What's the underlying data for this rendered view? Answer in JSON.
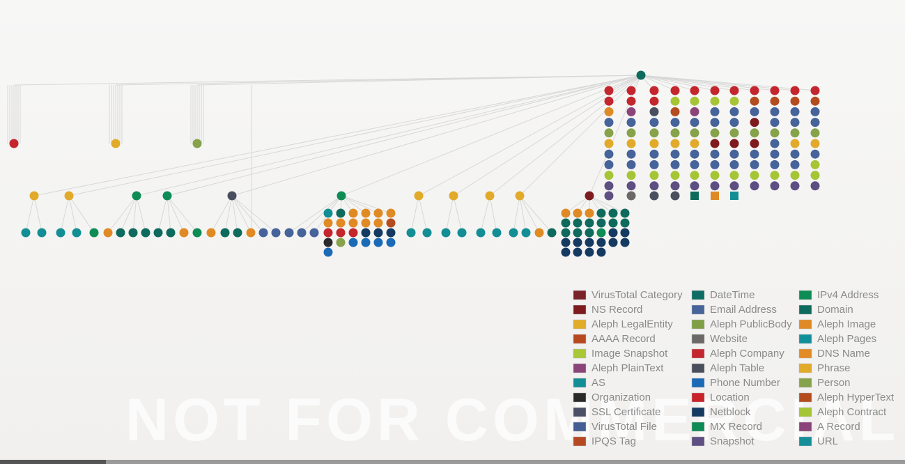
{
  "watermark": "NOT FOR COMMERCIAL USE",
  "legend": [
    {
      "label": "VirusTotal Category",
      "color": "#7a2228"
    },
    {
      "label": "NS Record",
      "color": "#7e1b1f"
    },
    {
      "label": "Aleph LegalEntity",
      "color": "#e2ac28"
    },
    {
      "label": "AAAA Record",
      "color": "#b8491f"
    },
    {
      "label": "Image Snapshot",
      "color": "#a8c83a"
    },
    {
      "label": "Aleph PlainText",
      "color": "#8a4479"
    },
    {
      "label": "AS",
      "color": "#138e95"
    },
    {
      "label": "Organization",
      "color": "#2a2a2a"
    },
    {
      "label": "SSL Certificate",
      "color": "#4b5068"
    },
    {
      "label": "VirusTotal File",
      "color": "#455e93"
    },
    {
      "label": "IPQS Tag",
      "color": "#b54a22"
    },
    {
      "label": "DateTime",
      "color": "#0e6d63"
    },
    {
      "label": "Email Address",
      "color": "#46639a"
    },
    {
      "label": "Aleph PublicBody",
      "color": "#7fa046"
    },
    {
      "label": "Website",
      "color": "#6c6865"
    },
    {
      "label": "Aleph Company",
      "color": "#c4262e"
    },
    {
      "label": "Aleph Table",
      "color": "#4a4f5e"
    },
    {
      "label": "Phone Number",
      "color": "#1a6ab8"
    },
    {
      "label": "Location",
      "color": "#c9222a"
    },
    {
      "label": "Netblock",
      "color": "#153a62"
    },
    {
      "label": "MX Record",
      "color": "#0d8a55"
    },
    {
      "label": "Snapshot",
      "color": "#5d4f82"
    },
    {
      "label": "IPv4 Address",
      "color": "#0e8c55"
    },
    {
      "label": "Domain",
      "color": "#0e6a5c"
    },
    {
      "label": "Aleph Image",
      "color": "#e08a25"
    },
    {
      "label": "Aleph Pages",
      "color": "#12909a"
    },
    {
      "label": "DNS Name",
      "color": "#e38b26"
    },
    {
      "label": "Phrase",
      "color": "#e2aa2a"
    },
    {
      "label": "Person",
      "color": "#86a24a"
    },
    {
      "label": "Aleph HyperText",
      "color": "#b54c1f"
    },
    {
      "label": "Aleph Contract",
      "color": "#a6c535"
    },
    {
      "label": "A Record",
      "color": "#8a4479"
    },
    {
      "label": "URL",
      "color": "#148e99"
    }
  ]
}
